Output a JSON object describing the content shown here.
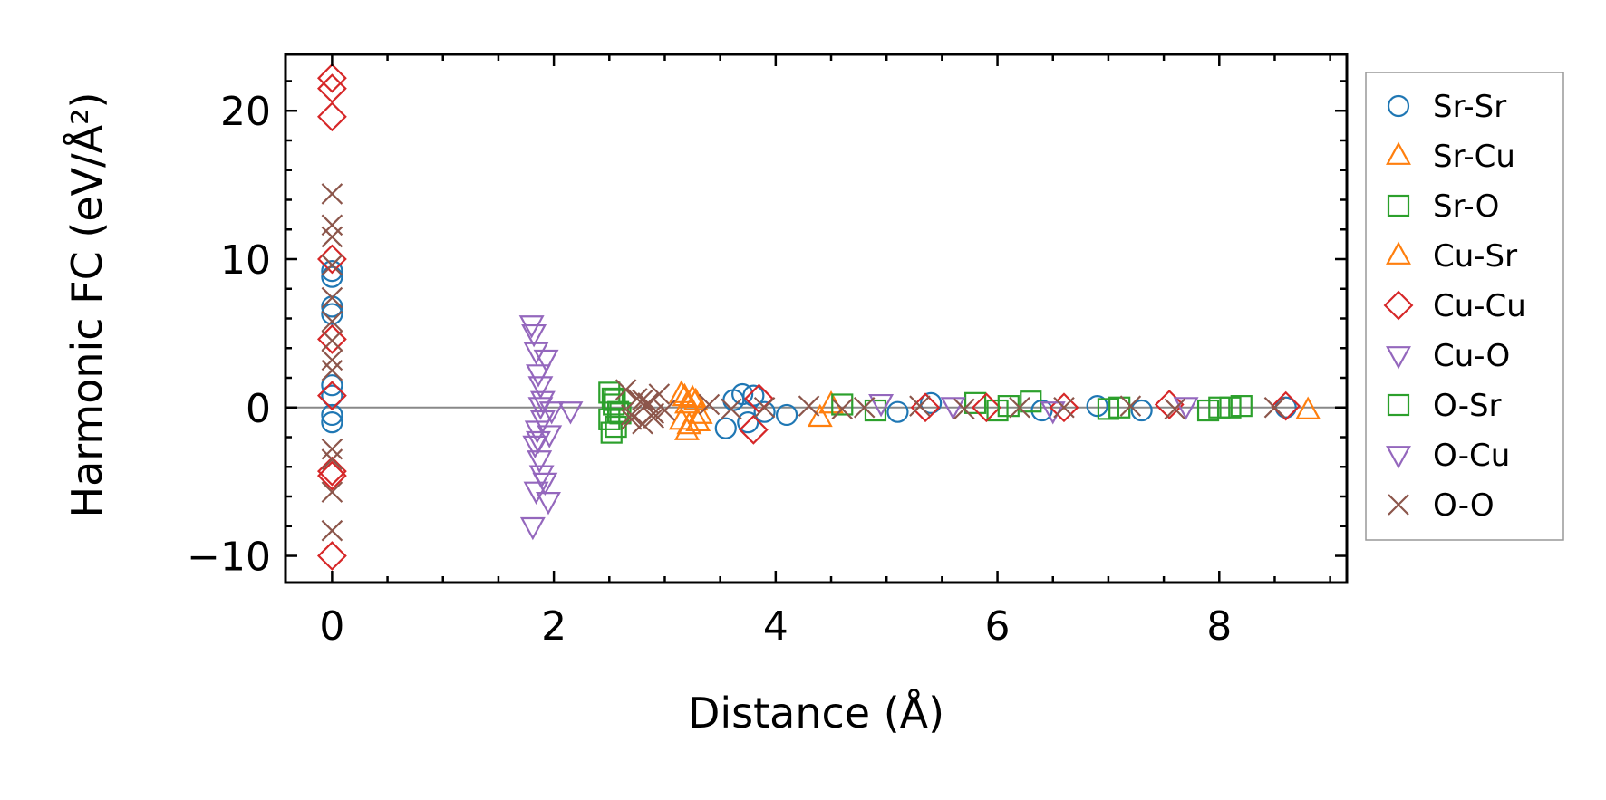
{
  "chart_data": {
    "type": "scatter",
    "xlabel": "Distance (Å)",
    "ylabel": "Harmonic FC (eV/Å²)",
    "xlim": [
      -0.42,
      9.15
    ],
    "ylim": [
      -11.8,
      23.8
    ],
    "xticks": [
      0,
      2,
      4,
      6,
      8
    ],
    "xtick_labels": [
      "0",
      "2",
      "4",
      "6",
      "8"
    ],
    "yticks": [
      -10,
      0,
      10,
      20
    ],
    "ytick_labels": [
      "−10",
      "0",
      "10",
      "20"
    ],
    "x_minor_step": 0.5,
    "y_minor_step": 2,
    "zero_line": true,
    "grid": false,
    "legend_position": "outside-right",
    "series": [
      {
        "name": "Sr-Sr",
        "marker": "circle",
        "color": "#1f77b4",
        "x": [
          0,
          0,
          0,
          0,
          0,
          0,
          0,
          0,
          3.55,
          3.62,
          3.7,
          3.75,
          3.8,
          3.9,
          4.1,
          5.1,
          5.4,
          6.4,
          6.9,
          7.3,
          8.6
        ],
        "y": [
          9.2,
          8.8,
          6.8,
          6.3,
          1.5,
          0.8,
          -0.5,
          -1.0,
          -1.4,
          0.5,
          0.9,
          -1.0,
          0.8,
          -0.3,
          -0.5,
          -0.3,
          0.3,
          -0.2,
          0.1,
          -0.2,
          0.0
        ]
      },
      {
        "name": "Sr-Cu",
        "marker": "triangle-up",
        "color": "#ff7f0e",
        "x": [
          3.15,
          3.2,
          3.25,
          3.3,
          3.2,
          4.4,
          4.5,
          8.8
        ],
        "y": [
          0.9,
          -1.6,
          0.6,
          -1.0,
          0.2,
          -0.7,
          0.2,
          -0.2
        ]
      },
      {
        "name": "Sr-O",
        "marker": "square",
        "color": "#2ca02c",
        "x": [
          2.5,
          2.52,
          2.55,
          2.5,
          2.58,
          4.6,
          4.9,
          5.8,
          6.0,
          6.3,
          7.1,
          7.9,
          8.0,
          8.2
        ],
        "y": [
          1.0,
          -1.7,
          0.5,
          -0.8,
          -0.3,
          0.2,
          -0.2,
          0.3,
          -0.2,
          0.4,
          0.0,
          -0.2,
          0.0,
          0.1
        ]
      },
      {
        "name": "Cu-Sr",
        "marker": "triangle-up",
        "color": "#ff7f0e",
        "x": [
          3.18,
          3.22,
          3.28,
          3.32,
          3.15
        ],
        "y": [
          0.7,
          -1.2,
          0.4,
          -0.5,
          -0.9
        ]
      },
      {
        "name": "Cu-Cu",
        "marker": "diamond",
        "color": "#d62728",
        "x": [
          0,
          0,
          0,
          0,
          0,
          0,
          0,
          0,
          0,
          3.8,
          3.85,
          5.35,
          5.9,
          6.6,
          7.55,
          8.6
        ],
        "y": [
          22.2,
          21.5,
          19.6,
          10.0,
          4.6,
          0.8,
          -4.6,
          -4.3,
          -10.0,
          -1.5,
          0.6,
          0.0,
          0.0,
          0.0,
          0.2,
          0.1
        ]
      },
      {
        "name": "Cu-O",
        "marker": "triangle-down",
        "color": "#9467bd",
        "x": [
          1.8,
          1.82,
          1.84,
          1.86,
          1.88,
          1.9,
          1.85,
          1.83,
          1.87,
          1.89,
          1.92,
          1.95,
          1.98,
          2.15,
          4.95,
          5.6,
          6.5,
          7.7
        ],
        "y": [
          5.6,
          5.0,
          3.8,
          2.3,
          1.5,
          0.5,
          -1.5,
          -2.5,
          -3.5,
          -4.5,
          -5.0,
          -6.3,
          -0.2,
          -0.2,
          0.3,
          0.1,
          -0.2,
          0.1
        ]
      },
      {
        "name": "O-Sr",
        "marker": "square",
        "color": "#2ca02c",
        "x": [
          2.53,
          2.56,
          2.6,
          2.54,
          6.1,
          7.0,
          8.1
        ],
        "y": [
          0.6,
          -1.3,
          -0.4,
          0.2,
          0.1,
          -0.1,
          0.0
        ]
      },
      {
        "name": "O-Cu",
        "marker": "triangle-down",
        "color": "#9467bd",
        "x": [
          1.81,
          1.84,
          1.86,
          1.88,
          1.9,
          1.93,
          1.96
        ],
        "y": [
          -8.0,
          -5.6,
          -2.2,
          0.1,
          -0.8,
          3.3,
          -1.8
        ]
      },
      {
        "name": "O-O",
        "marker": "x",
        "color": "#8c564b",
        "x": [
          0,
          0,
          0,
          0,
          0,
          0,
          0,
          0,
          0,
          0,
          0,
          0,
          0,
          2.65,
          2.7,
          2.75,
          2.8,
          2.85,
          2.9,
          2.95,
          3.0,
          2.7,
          2.8,
          2.9,
          3.4,
          3.6,
          3.9,
          4.3,
          4.6,
          4.8,
          5.3,
          5.7,
          6.2,
          6.6,
          7.2,
          7.6,
          8.5
        ],
        "y": [
          14.4,
          12.3,
          11.5,
          9.6,
          7.4,
          5.8,
          4.5,
          3.2,
          2.5,
          -2.8,
          -3.5,
          -5.7,
          -8.3,
          1.2,
          -0.8,
          0.6,
          -1.1,
          0.3,
          -0.4,
          0.9,
          -0.2,
          -0.5,
          0.5,
          -0.7,
          0.2,
          -0.1,
          0.0,
          0.1,
          -0.1,
          0.0,
          0.1,
          -0.1,
          0.0,
          0.0,
          0.1,
          -0.1,
          0.0
        ]
      }
    ]
  }
}
